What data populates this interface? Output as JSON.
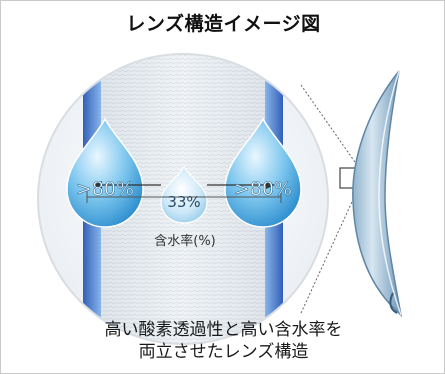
{
  "title": "レンズ構造イメージ図",
  "drops": {
    "left_value": ">80%",
    "center_value": "33%",
    "right_value": ">80%"
  },
  "axis_label": "含水率(%)",
  "caption": {
    "line1": "高い酸素透過性と高い含水率を",
    "line2": "両立させたレンズ構造"
  },
  "colors": {
    "drop": "#5fb6e6",
    "drop_light": "#d8eef9",
    "edge_blue": "#2c63c8",
    "lens": "#a9c7dc"
  }
}
